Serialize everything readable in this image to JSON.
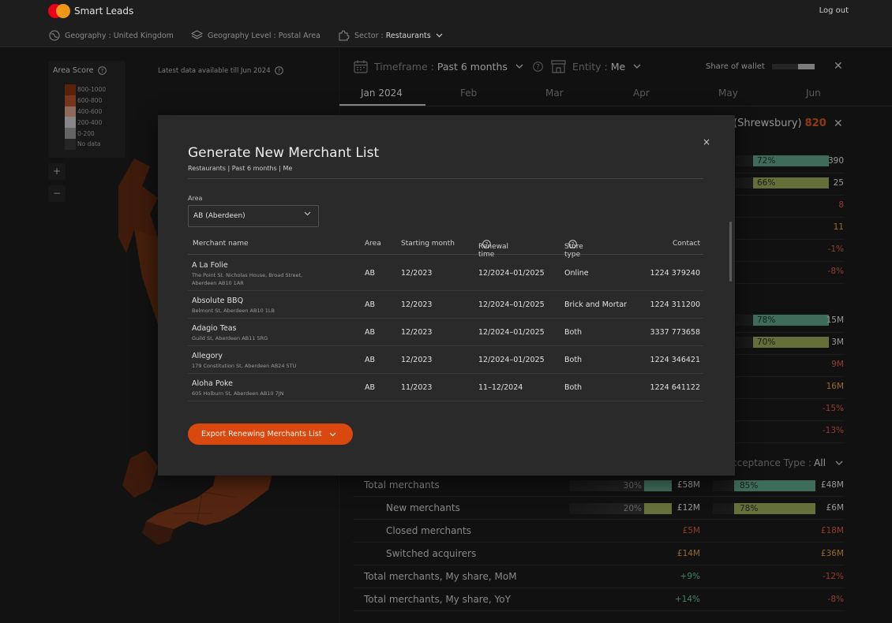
{
  "app": {
    "name": "Smart Leads",
    "logout": "Log out"
  },
  "filters": [
    {
      "label": "Geography : United Kingdom",
      "value": ""
    },
    {
      "label": "Geography Level : Postal Area",
      "value": ""
    },
    {
      "label": "Sector :",
      "value": "Restaurants"
    }
  ],
  "map": {
    "legend_title": "Area Score",
    "legend": [
      {
        "label": "800-1000",
        "color": "#8a3510"
      },
      {
        "label": "600-800",
        "color": "#b5532a"
      },
      {
        "label": "400-600",
        "color": "#d8a58f"
      },
      {
        "label": "200-400",
        "color": "#cfcfcf"
      },
      {
        "label": "0-200",
        "color": "#9a9a9a"
      },
      {
        "label": "No data",
        "color": "#3a3a3a"
      }
    ],
    "zoom_in": "+",
    "zoom_out": "−",
    "latest": "Latest data available till Jun 2024"
  },
  "right_panel": {
    "timeframe_label": "Timeframe :",
    "timeframe_value": "Past 6 months",
    "entity_label": "Entity :",
    "entity_value": "Me",
    "share_of_wallet": "Share of wallet",
    "share_of_wallet_pct": 0.38,
    "months": [
      "Jan 2024",
      "Feb",
      "Mar",
      "Apr",
      "May",
      "Jun"
    ],
    "detail_title": "(Shrewsbury)",
    "detail_score": "820",
    "acceptance_label": "cceptance Type :",
    "acceptance_value": "All"
  },
  "stats_top": [
    {
      "pct": "72%",
      "pct_value": 72,
      "color": "#5fa88a",
      "num": "390",
      "tone": "w"
    },
    {
      "pct": "66%",
      "pct_value": 66,
      "color": "#9aab5a",
      "num": "25",
      "tone": "w"
    },
    {
      "pct": "",
      "pct_value": 0,
      "color": "",
      "num": "8",
      "tone": "r"
    },
    {
      "pct": "",
      "pct_value": 0,
      "color": "",
      "num": "11",
      "tone": "o"
    },
    {
      "pct": "",
      "pct_value": 0,
      "color": "",
      "num": "-1%",
      "tone": "r"
    },
    {
      "pct": "",
      "pct_value": 0,
      "color": "",
      "num": "-8%",
      "tone": "r"
    }
  ],
  "stats_mid": [
    {
      "pct": "78%",
      "pct_value": 78,
      "color": "#5fa88a",
      "num": "15M",
      "tone": "w"
    },
    {
      "pct": "70%",
      "pct_value": 70,
      "color": "#9aab5a",
      "num": "3M",
      "tone": "w"
    },
    {
      "pct": "",
      "pct_value": 0,
      "color": "",
      "num": "9M",
      "tone": "r"
    },
    {
      "pct": "",
      "pct_value": 0,
      "color": "",
      "num": "16M",
      "tone": "o"
    },
    {
      "pct": "",
      "pct_value": 0,
      "color": "",
      "num": "-15%",
      "tone": "r"
    },
    {
      "pct": "",
      "pct_value": 0,
      "color": "",
      "num": "-13%",
      "tone": "r"
    }
  ],
  "merchants_table": [
    {
      "label": "Total merchants",
      "indent": false,
      "p1": "30%",
      "p1v": 30,
      "c1": "#5fa88a",
      "v1": "£58M",
      "t1": "w",
      "p2": "85%",
      "p2v": 85,
      "c2": "#5fa88a",
      "v2": "£48M",
      "t2": "w"
    },
    {
      "label": "New merchants",
      "indent": true,
      "p1": "20%",
      "p1v": 20,
      "c1": "#9aab5a",
      "v1": "£12M",
      "t1": "w",
      "p2": "78%",
      "p2v": 78,
      "c2": "#9aab5a",
      "v2": "£6M",
      "t2": "w"
    },
    {
      "label": "Closed merchants",
      "indent": true,
      "p1": "",
      "p1v": 0,
      "c1": "",
      "v1": "£5M",
      "t1": "r",
      "p2": "",
      "p2v": 0,
      "c2": "",
      "v2": "£18M",
      "t2": "r"
    },
    {
      "label": "Switched acquirers",
      "indent": true,
      "p1": "",
      "p1v": 0,
      "c1": "",
      "v1": "£14M",
      "t1": "o",
      "p2": "",
      "p2v": 0,
      "c2": "",
      "v2": "£36M",
      "t2": "o"
    },
    {
      "label": "Total merchants, My share, MoM",
      "indent": false,
      "p1": "",
      "p1v": 0,
      "c1": "",
      "v1": "+9%",
      "t1": "g",
      "p2": "",
      "p2v": 0,
      "c2": "",
      "v2": "-12%",
      "t2": "r"
    },
    {
      "label": "Total merchants, My share, YoY",
      "indent": false,
      "p1": "",
      "p1v": 0,
      "c1": "",
      "v1": "+14%",
      "t1": "g",
      "p2": "",
      "p2v": 0,
      "c2": "",
      "v2": "-8%",
      "t2": "r"
    }
  ],
  "modal": {
    "title": "Generate New Merchant List",
    "subtitle": "Restaurants | Past 6 months | Me",
    "close": "×",
    "area_label": "Area",
    "area_value": "AB  (Aberdeen)",
    "columns": {
      "name": "Merchant name",
      "area": "Area",
      "start": "Starting month",
      "renewal": "Renewal time",
      "store": "Store type",
      "contact": "Contact"
    },
    "rows": [
      {
        "name": "A La Folie",
        "address": "The Point St. Nicholas House, Broad Street, Aberdeen AB10 1AR",
        "area": "AB",
        "start": "12/2023",
        "renewal": "12/2024–01/2025",
        "store": "Online",
        "contact": "1224 379240"
      },
      {
        "name": "Absolute BBQ",
        "address": "Belmont St, Aberdeen AB10 1LB",
        "area": "AB",
        "start": "12/2023",
        "renewal": "12/2024–01/2025",
        "store": "Brick and Mortar",
        "contact": "1224 311200"
      },
      {
        "name": "Adagio Teas",
        "address": "Guild St, Aberdeen AB11 5RG",
        "area": "AB",
        "start": "12/2023",
        "renewal": "12/2024–01/2025",
        "store": "Both",
        "contact": "3337 773658"
      },
      {
        "name": "Allegory",
        "address": "179 Constitution St, Aberdeen AB24 5TU",
        "area": "AB",
        "start": "12/2023",
        "renewal": "12/2024–01/2025",
        "store": "Both",
        "contact": "1224 346421"
      },
      {
        "name": "Aloha Poke",
        "address": "605 Holburn St, Aberdeen AB10 7JN",
        "area": "AB",
        "start": "11/2023",
        "renewal": "11–12/2024",
        "store": "Both",
        "contact": "1224 641122"
      }
    ],
    "export_label": "Export Renewing Merchants List"
  }
}
